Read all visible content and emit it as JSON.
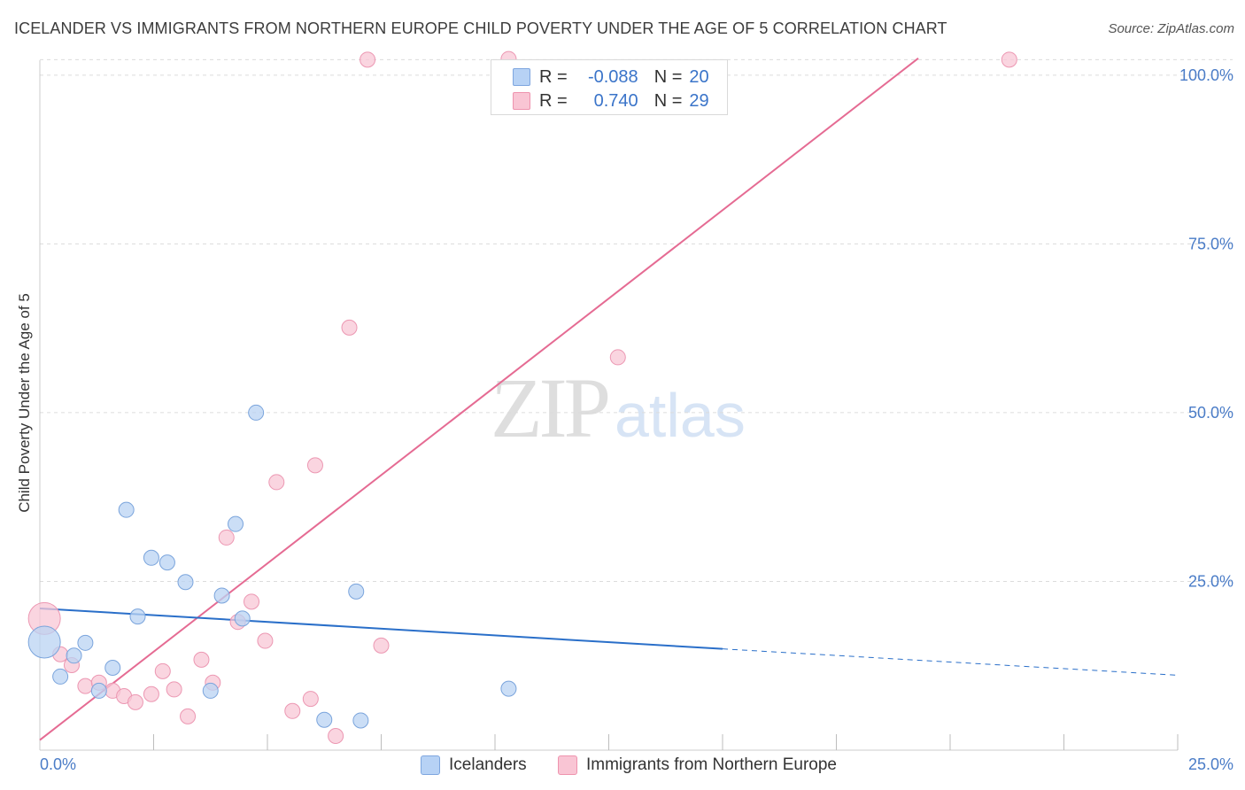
{
  "header": {
    "title": "ICELANDER VS IMMIGRANTS FROM NORTHERN EUROPE CHILD POVERTY UNDER THE AGE OF 5 CORRELATION CHART",
    "source": "Source: ZipAtlas.com"
  },
  "watermark": {
    "zip": "ZIP",
    "atlas": "atlas"
  },
  "legend_stats": {
    "r_label": "R =",
    "n_label": "N =",
    "series1": {
      "r": "-0.088",
      "n": "20",
      "color": "#b7d2f5",
      "border": "#7ea6df"
    },
    "series2": {
      "r": "0.740",
      "n": "29",
      "color": "#f9c5d4",
      "border": "#ee93ae"
    }
  },
  "bottom_legend": {
    "series1": "Icelanders",
    "series2": "Immigrants from Northern Europe"
  },
  "colors": {
    "blue_fill": "#b9d3f3",
    "blue_stroke": "#7aa4dc",
    "blue_line": "#2a6fc9",
    "pink_fill": "#f8c7d6",
    "pink_stroke": "#ec97b2",
    "pink_line": "#e56b93",
    "grid": "#dcdcdc",
    "tick_label": "#4a7cc7"
  },
  "chart_data": {
    "type": "scatter",
    "title": "ICELANDER VS IMMIGRANTS FROM NORTHERN EUROPE CHILD POVERTY UNDER THE AGE OF 5 CORRELATION CHART",
    "xlabel": "",
    "ylabel": "Child Poverty Under the Age of 5",
    "xlim": [
      0,
      25
    ],
    "ylim": [
      0,
      103
    ],
    "x_tick_labels": [
      "0.0%",
      "25.0%"
    ],
    "y_ticks": [
      25,
      50,
      75,
      100
    ],
    "y_tick_labels": [
      "25.0%",
      "50.0%",
      "75.0%",
      "100.0%"
    ],
    "series": [
      {
        "name": "Icelanders",
        "points": [
          {
            "x": 0.1,
            "y": 16.0,
            "size": "large"
          },
          {
            "x": 0.45,
            "y": 10.9
          },
          {
            "x": 0.75,
            "y": 14.0
          },
          {
            "x": 1.0,
            "y": 15.9
          },
          {
            "x": 1.3,
            "y": 8.8
          },
          {
            "x": 1.6,
            "y": 12.2
          },
          {
            "x": 1.9,
            "y": 35.6
          },
          {
            "x": 2.15,
            "y": 19.8
          },
          {
            "x": 2.45,
            "y": 28.5
          },
          {
            "x": 2.8,
            "y": 27.8
          },
          {
            "x": 3.2,
            "y": 24.9
          },
          {
            "x": 3.75,
            "y": 8.8
          },
          {
            "x": 4.0,
            "y": 22.9
          },
          {
            "x": 4.3,
            "y": 33.5
          },
          {
            "x": 4.45,
            "y": 19.5
          },
          {
            "x": 4.75,
            "y": 50.0
          },
          {
            "x": 6.25,
            "y": 4.5
          },
          {
            "x": 6.95,
            "y": 23.5
          },
          {
            "x": 7.05,
            "y": 4.4
          },
          {
            "x": 10.3,
            "y": 9.1
          }
        ],
        "trend": {
          "x": [
            0,
            15
          ],
          "y": [
            21.0,
            15.0
          ],
          "dashed_extension": {
            "x": [
              15,
              25
            ],
            "y": [
              15.0,
              11.1
            ]
          }
        }
      },
      {
        "name": "Immigrants from Northern Europe",
        "points": [
          {
            "x": 0.1,
            "y": 19.5,
            "size": "large"
          },
          {
            "x": 0.45,
            "y": 14.2
          },
          {
            "x": 0.7,
            "y": 12.6
          },
          {
            "x": 1.0,
            "y": 9.5
          },
          {
            "x": 1.3,
            "y": 10.0
          },
          {
            "x": 1.6,
            "y": 8.8
          },
          {
            "x": 1.85,
            "y": 8.0
          },
          {
            "x": 2.1,
            "y": 7.1
          },
          {
            "x": 2.45,
            "y": 8.3
          },
          {
            "x": 2.7,
            "y": 11.7
          },
          {
            "x": 2.95,
            "y": 9.0
          },
          {
            "x": 3.25,
            "y": 5.0
          },
          {
            "x": 3.55,
            "y": 13.4
          },
          {
            "x": 3.8,
            "y": 10.0
          },
          {
            "x": 4.1,
            "y": 31.5
          },
          {
            "x": 4.35,
            "y": 19.0
          },
          {
            "x": 4.65,
            "y": 22.0
          },
          {
            "x": 4.95,
            "y": 16.2
          },
          {
            "x": 5.2,
            "y": 39.7
          },
          {
            "x": 5.55,
            "y": 5.8
          },
          {
            "x": 5.95,
            "y": 7.6
          },
          {
            "x": 6.05,
            "y": 42.2
          },
          {
            "x": 6.5,
            "y": 2.1
          },
          {
            "x": 6.8,
            "y": 62.6
          },
          {
            "x": 7.2,
            "y": 102.3
          },
          {
            "x": 7.5,
            "y": 15.5
          },
          {
            "x": 10.3,
            "y": 102.4
          },
          {
            "x": 12.7,
            "y": 58.2
          },
          {
            "x": 21.3,
            "y": 102.3
          }
        ],
        "trend": {
          "x": [
            0,
            19.3
          ],
          "y": [
            1.5,
            102.5
          ]
        }
      }
    ]
  }
}
